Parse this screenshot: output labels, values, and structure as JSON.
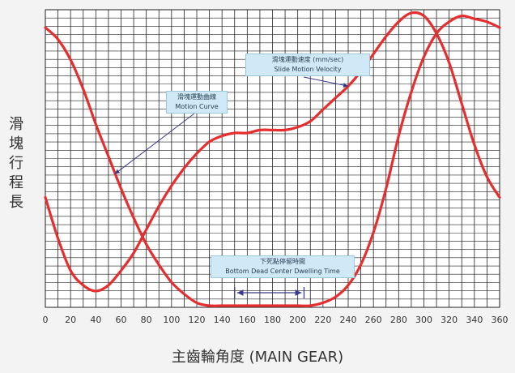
{
  "chart_data": {
    "type": "line",
    "xlabel": "主齒輪角度 (MAIN GEAR)",
    "ylabel": "滑塊行程長",
    "x_ticks": [
      0,
      20,
      40,
      60,
      80,
      100,
      120,
      140,
      160,
      180,
      200,
      220,
      240,
      260,
      280,
      300,
      320,
      340,
      360
    ],
    "xlim": [
      0,
      360
    ],
    "grid": true,
    "series": [
      {
        "name": "Motion Curve",
        "x": [
          0,
          10,
          20,
          30,
          40,
          50,
          60,
          70,
          80,
          90,
          100,
          110,
          120,
          130,
          140,
          150,
          160,
          180,
          200,
          210,
          220,
          230,
          240,
          250,
          260,
          270,
          280,
          290,
          300,
          310,
          320,
          330,
          340,
          350,
          360
        ],
        "y": [
          0.95,
          0.91,
          0.84,
          0.74,
          0.62,
          0.51,
          0.4,
          0.3,
          0.21,
          0.14,
          0.08,
          0.04,
          0.01,
          0.0,
          0.0,
          0.0,
          0.0,
          0.0,
          0.0,
          0.0,
          0.01,
          0.03,
          0.07,
          0.14,
          0.25,
          0.4,
          0.58,
          0.73,
          0.85,
          0.93,
          0.97,
          0.99,
          0.98,
          0.97,
          0.95
        ]
      },
      {
        "name": "Slide Motion Velocity",
        "x": [
          0,
          10,
          20,
          30,
          40,
          50,
          60,
          70,
          80,
          90,
          100,
          110,
          120,
          130,
          140,
          150,
          160,
          170,
          180,
          190,
          200,
          210,
          220,
          230,
          240,
          250,
          260,
          270,
          280,
          290,
          300,
          310,
          320,
          330,
          340,
          350,
          360
        ],
        "y": [
          0.37,
          0.23,
          0.12,
          0.07,
          0.05,
          0.07,
          0.12,
          0.18,
          0.26,
          0.34,
          0.41,
          0.47,
          0.52,
          0.56,
          0.58,
          0.59,
          0.59,
          0.6,
          0.6,
          0.6,
          0.61,
          0.63,
          0.67,
          0.71,
          0.75,
          0.8,
          0.86,
          0.92,
          0.97,
          1.0,
          0.99,
          0.93,
          0.83,
          0.69,
          0.55,
          0.44,
          0.37
        ]
      }
    ]
  },
  "annotations": {
    "motion_curve": {
      "line1": "滑塊運動曲線",
      "line2": "Motion Curve"
    },
    "velocity": {
      "line1": "滑塊運動速度 (mm/sec)",
      "line2": "Slide Motion Velocity"
    },
    "dwell": {
      "line1": "下死點停留時間",
      "line2": "Bottom Dead Center Dwelling Time"
    }
  },
  "colors": {
    "curve": "#e62e2e",
    "grid": "#222222",
    "plot_bg": "#ffffff",
    "arrow": "#3a3a8c",
    "callout": "#cfe9f6"
  }
}
